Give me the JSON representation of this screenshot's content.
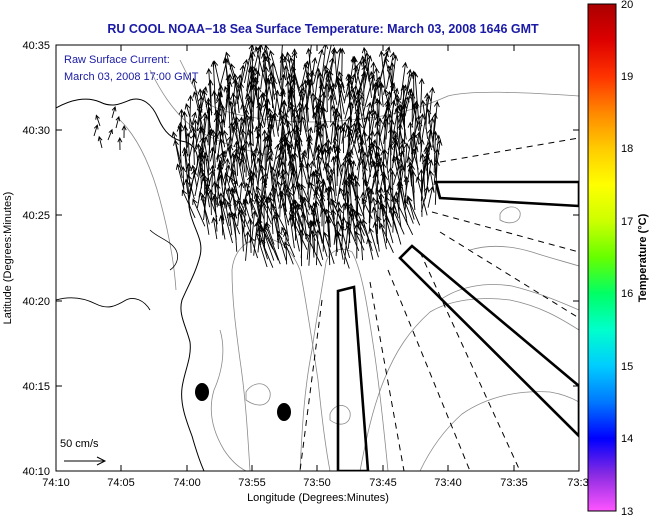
{
  "title": "RU COOL  NOAA−18  Sea Surface Temperature:  March 03, 2008 1646 GMT",
  "annotation": {
    "line1": "Raw Surface Current:",
    "line2": "March 03, 2008 17:00 GMT"
  },
  "scale": {
    "label": "50 cm/s"
  },
  "x_axis": {
    "label": "Longitude (Degrees:Minutes)",
    "ticks": [
      "74:10",
      "74:05",
      "74:00",
      "73:55",
      "73:50",
      "73:45",
      "73:40",
      "73:35",
      "73:3"
    ]
  },
  "y_axis": {
    "label": "Latitude (Degrees:Minutes)",
    "ticks": [
      "40:35",
      "40:30",
      "40:25",
      "40:20",
      "40:15",
      "40:10"
    ]
  },
  "colorbar": {
    "label": "Temperature (°C)",
    "ticks": [
      "20",
      "19",
      "18",
      "17",
      "16",
      "15",
      "14",
      "13"
    ],
    "colors": [
      "#ff55ff",
      "#8a2be2",
      "#0000ff",
      "#0077ff",
      "#00ccff",
      "#00ffcc",
      "#00ff66",
      "#66ff00",
      "#ccff00",
      "#ffff00",
      "#ffcc00",
      "#ff8800",
      "#ff3300",
      "#dd0000",
      "#aa0000"
    ]
  },
  "colors": {
    "title": "#1a1aa6",
    "frame": "#000000",
    "contour": "#888888"
  }
}
